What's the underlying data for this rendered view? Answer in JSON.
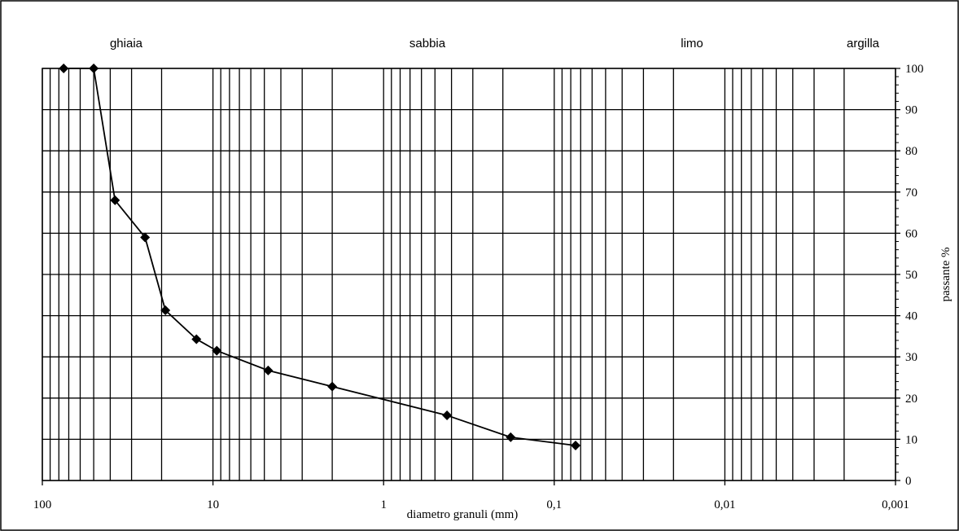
{
  "chart_data": {
    "type": "line",
    "x_label": "diametro granuli (mm)",
    "y_label": "passante %",
    "annotations": [
      "ghiaia",
      "sabbia",
      "limo",
      "argilla"
    ],
    "x": [
      75,
      50,
      37.5,
      25,
      19,
      12.5,
      9.5,
      4.75,
      2,
      0.425,
      0.18,
      0.075
    ],
    "series": [
      {
        "name": "passante",
        "color": "#000000",
        "values": [
          100,
          100,
          68,
          59,
          41.3,
          34.3,
          31.5,
          26.7,
          22.8,
          15.8,
          10.5,
          8.5
        ]
      }
    ],
    "x_log": true,
    "xlim": [
      100,
      0.001
    ],
    "xticks": [
      100,
      10,
      1,
      {
        "value": 0.1,
        "label": "0,1"
      },
      {
        "value": 0.01,
        "label": "0,01"
      },
      {
        "value": 0.001,
        "label": "0,001"
      }
    ],
    "ylim": [
      0,
      100
    ],
    "yticks": [
      0,
      10,
      20,
      30,
      40,
      50,
      60,
      70,
      80,
      90,
      100
    ],
    "grid": true
  }
}
